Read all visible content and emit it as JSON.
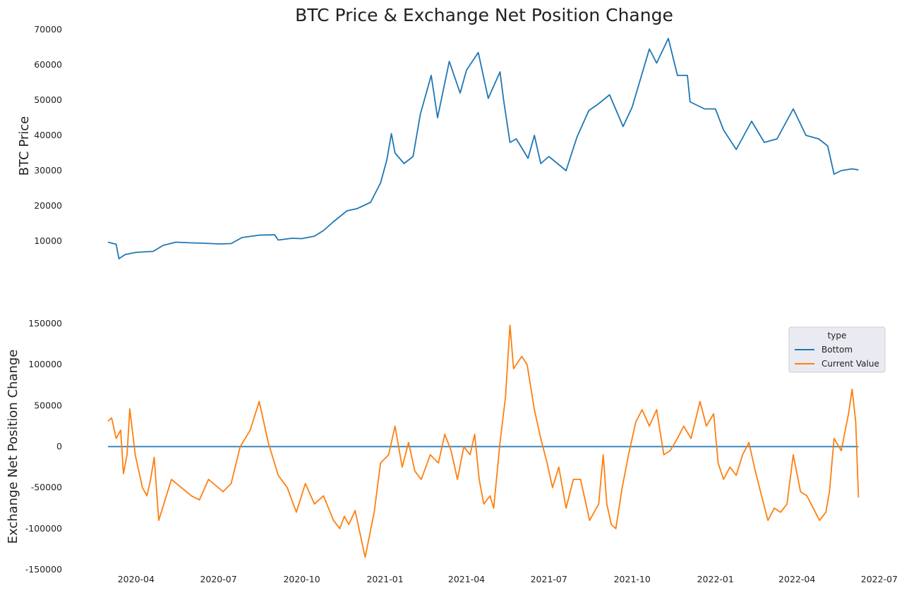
{
  "chart_data": [
    {
      "type": "line",
      "title": "BTC Price & Exchange Net Position Change",
      "xlabel": "",
      "ylabel": "BTC  Price",
      "ylim": [
        4000,
        70000
      ],
      "yticks": [
        10000,
        20000,
        30000,
        40000,
        50000,
        60000,
        70000
      ],
      "grid": false,
      "colors": {
        "price": "#1f77b4"
      },
      "series": [
        {
          "x": [
            "2020-03-01",
            "2020-03-10",
            "2020-03-13",
            "2020-03-20",
            "2020-04-01",
            "2020-04-20",
            "2020-05-01",
            "2020-05-15",
            "2020-06-01",
            "2020-06-15",
            "2020-07-01",
            "2020-07-15",
            "2020-07-27",
            "2020-08-15",
            "2020-09-01",
            "2020-09-05",
            "2020-09-20",
            "2020-10-01",
            "2020-10-15",
            "2020-10-25",
            "2020-11-05",
            "2020-11-20",
            "2020-12-01",
            "2020-12-16",
            "2020-12-27",
            "2021-01-03",
            "2021-01-08",
            "2021-01-12",
            "2021-01-22",
            "2021-02-01",
            "2021-02-09",
            "2021-02-21",
            "2021-02-28",
            "2021-03-13",
            "2021-03-25",
            "2021-04-01",
            "2021-04-14",
            "2021-04-25",
            "2021-05-08",
            "2021-05-12",
            "2021-05-19",
            "2021-05-26",
            "2021-06-08",
            "2021-06-15",
            "2021-06-22",
            "2021-07-01",
            "2021-07-20",
            "2021-08-01",
            "2021-08-14",
            "2021-08-25",
            "2021-09-06",
            "2021-09-21",
            "2021-10-01",
            "2021-10-20",
            "2021-10-28",
            "2021-11-10",
            "2021-11-20",
            "2021-12-01",
            "2021-12-04",
            "2021-12-20",
            "2022-01-01",
            "2022-01-10",
            "2022-01-24",
            "2022-02-10",
            "2022-02-24",
            "2022-03-10",
            "2022-03-28",
            "2022-04-11",
            "2022-04-25",
            "2022-05-05",
            "2022-05-12",
            "2022-05-20",
            "2022-06-01",
            "2022-06-08"
          ],
          "values": [
            9700,
            9100,
            5000,
            6200,
            6800,
            7100,
            8800,
            9700,
            9500,
            9400,
            9200,
            9300,
            11000,
            11700,
            11800,
            10300,
            10800,
            10700,
            11400,
            13000,
            15500,
            18600,
            19200,
            21000,
            26500,
            33000,
            40500,
            35000,
            32000,
            34000,
            46000,
            57000,
            45000,
            61000,
            52000,
            58500,
            63500,
            50500,
            58000,
            50000,
            38000,
            39000,
            33500,
            40000,
            32000,
            34000,
            30000,
            39500,
            47000,
            49000,
            51500,
            42500,
            48000,
            64500,
            60500,
            67500,
            57000,
            57000,
            49500,
            47500,
            47500,
            41500,
            36000,
            44000,
            38000,
            39000,
            47500,
            40000,
            39000,
            37000,
            29000,
            30000,
            30500,
            30200
          ]
        }
      ]
    },
    {
      "type": "line",
      "title": "",
      "xlabel": "",
      "ylabel": "Exchange Net Position Change",
      "ylim": [
        -150000,
        150000
      ],
      "yticks": [
        -150000,
        -100000,
        -50000,
        0,
        50000,
        100000,
        150000
      ],
      "xticks": [
        "2020-04",
        "2020-07",
        "2020-10",
        "2021-01",
        "2021-04",
        "2021-07",
        "2021-10",
        "2022-01",
        "2022-04",
        "2022-07"
      ],
      "grid": false,
      "legend": {
        "title": "type",
        "placement": "upper right"
      },
      "series": [
        {
          "name": "Bottom",
          "color": "#1f77b4",
          "x": [
            "2020-03-01",
            "2022-06-08"
          ],
          "values": [
            0,
            0
          ]
        },
        {
          "name": "Current Value",
          "color": "#ff7f0e",
          "x": [
            "2020-03-01",
            "2020-03-05",
            "2020-03-10",
            "2020-03-15",
            "2020-03-18",
            "2020-03-22",
            "2020-03-25",
            "2020-03-31",
            "2020-04-05",
            "2020-04-08",
            "2020-04-13",
            "2020-04-17",
            "2020-04-21",
            "2020-04-26",
            "2020-05-10",
            "2020-06-01",
            "2020-06-10",
            "2020-06-20",
            "2020-07-06",
            "2020-07-15",
            "2020-07-25",
            "2020-08-05",
            "2020-08-15",
            "2020-08-25",
            "2020-09-05",
            "2020-09-15",
            "2020-09-25",
            "2020-10-05",
            "2020-10-15",
            "2020-10-25",
            "2020-11-05",
            "2020-11-12",
            "2020-11-17",
            "2020-11-22",
            "2020-11-29",
            "2020-12-10",
            "2020-12-20",
            "2020-12-27",
            "2021-01-05",
            "2021-01-12",
            "2021-01-20",
            "2021-01-27",
            "2021-02-03",
            "2021-02-10",
            "2021-02-20",
            "2021-03-01",
            "2021-03-08",
            "2021-03-15",
            "2021-03-22",
            "2021-03-29",
            "2021-04-05",
            "2021-04-10",
            "2021-04-15",
            "2021-04-20",
            "2021-04-27",
            "2021-05-01",
            "2021-05-08",
            "2021-05-14",
            "2021-05-19",
            "2021-05-23",
            "2021-06-01",
            "2021-06-07",
            "2021-06-15",
            "2021-06-22",
            "2021-06-29",
            "2021-07-05",
            "2021-07-12",
            "2021-07-20",
            "2021-07-28",
            "2021-08-05",
            "2021-08-15",
            "2021-08-25",
            "2021-08-30",
            "2021-09-03",
            "2021-09-08",
            "2021-09-13",
            "2021-09-20",
            "2021-09-27",
            "2021-10-05",
            "2021-10-12",
            "2021-10-20",
            "2021-10-28",
            "2021-11-05",
            "2021-11-12",
            "2021-11-20",
            "2021-11-27",
            "2021-12-05",
            "2021-12-15",
            "2021-12-22",
            "2021-12-30",
            "2022-01-04",
            "2022-01-10",
            "2022-01-17",
            "2022-01-24",
            "2022-01-31",
            "2022-02-07",
            "2022-02-14",
            "2022-02-21",
            "2022-02-28",
            "2022-03-07",
            "2022-03-14",
            "2022-03-21",
            "2022-03-28",
            "2022-04-05",
            "2022-04-12",
            "2022-04-19",
            "2022-04-26",
            "2022-05-03",
            "2022-05-07",
            "2022-05-12",
            "2022-05-20",
            "2022-05-28",
            "2022-06-01",
            "2022-06-05",
            "2022-06-08"
          ],
          "values": [
            31000,
            35000,
            10000,
            20000,
            -33000,
            -10000,
            46000,
            -10000,
            -35000,
            -50000,
            -60000,
            -40000,
            -13000,
            -90000,
            -40000,
            -60000,
            -65000,
            -40000,
            -55000,
            -45000,
            0,
            20000,
            55000,
            5000,
            -35000,
            -50000,
            -80000,
            -45000,
            -70000,
            -60000,
            -90000,
            -100000,
            -85000,
            -95000,
            -78000,
            -135000,
            -80000,
            -20000,
            -10000,
            25000,
            -25000,
            5000,
            -30000,
            -40000,
            -10000,
            -20000,
            15000,
            -5000,
            -40000,
            0,
            -10000,
            15000,
            -40000,
            -70000,
            -60000,
            -75000,
            5000,
            60000,
            148000,
            95000,
            110000,
            100000,
            45000,
            10000,
            -20000,
            -50000,
            -25000,
            -75000,
            -40000,
            -40000,
            -90000,
            -70000,
            -10000,
            -70000,
            -95000,
            -100000,
            -50000,
            -10000,
            30000,
            45000,
            25000,
            45000,
            -10000,
            -5000,
            10000,
            25000,
            10000,
            55000,
            25000,
            40000,
            -20000,
            -40000,
            -25000,
            -35000,
            -10000,
            5000,
            -30000,
            -60000,
            -90000,
            -75000,
            -80000,
            -70000,
            -10000,
            -55000,
            -60000,
            -75000,
            -90000,
            -80000,
            -55000,
            10000,
            -5000,
            40000,
            70000,
            30000,
            -62000
          ]
        }
      ]
    }
  ]
}
